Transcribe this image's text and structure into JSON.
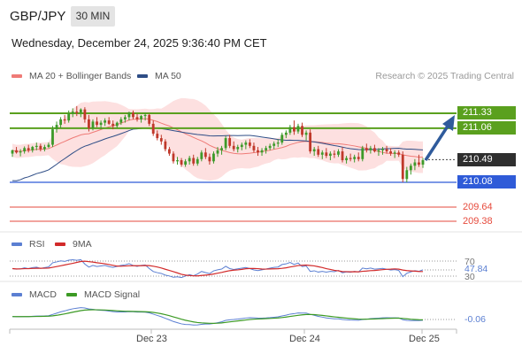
{
  "header": {
    "symbol": "GBP/JPY",
    "timeframe": "30 MIN",
    "datetime": "Wednesday, December 24, 2025 9:36:40 PM CET"
  },
  "legend": {
    "ma20": "MA 20 + Bollinger Bands",
    "ma50": "MA 50",
    "credit": "Research © 2025 Trading Central"
  },
  "colors": {
    "resistance": "#5aa01e",
    "support": "#2f5bd8",
    "target": "#e64a3c",
    "ma20": "#ef7b77",
    "ma50": "#2e4d86",
    "band": "#fde0e0",
    "up": "#3d9a2a",
    "down": "#c0392b",
    "rsi": "#5b7fd2",
    "rsi_ma": "#d22a2a",
    "macd": "#5b7fd2",
    "macd_signal": "#3c9a24"
  },
  "price_levels": [
    {
      "label": "211.33",
      "type": "resistance"
    },
    {
      "label": "211.06",
      "type": "resistance"
    },
    {
      "label": "210.49",
      "type": "current"
    },
    {
      "label": "210.08",
      "type": "support"
    },
    {
      "label": "209.64",
      "type": "target"
    },
    {
      "label": "209.38",
      "type": "target"
    }
  ],
  "rsi": {
    "name": "RSI",
    "ma_name": "9MA",
    "levels": [
      "70",
      "30"
    ],
    "current": "47.84"
  },
  "macd": {
    "name": "MACD",
    "signal_name": "MACD Signal",
    "current": "-0.06"
  },
  "x_axis": [
    "Dec 23",
    "Dec 24",
    "Dec 25"
  ],
  "chart_data": {
    "type": "candlestick",
    "title": "GBP/JPY",
    "timeframe": "30 MIN",
    "x_ticks": [
      "Dec 23",
      "Dec 24",
      "Dec 25"
    ],
    "ylim": [
      209.2,
      211.5
    ],
    "candles": [
      [
        210.6,
        210.67,
        210.54,
        210.66
      ],
      [
        210.66,
        210.72,
        210.6,
        210.62
      ],
      [
        210.62,
        210.68,
        210.55,
        210.64
      ],
      [
        210.64,
        210.73,
        210.6,
        210.7
      ],
      [
        210.7,
        210.76,
        210.62,
        210.66
      ],
      [
        210.66,
        210.74,
        210.62,
        210.72
      ],
      [
        210.72,
        210.8,
        210.66,
        210.74
      ],
      [
        210.74,
        210.78,
        210.64,
        210.68
      ],
      [
        210.68,
        210.76,
        210.64,
        210.72
      ],
      [
        210.72,
        210.8,
        210.7,
        210.76
      ],
      [
        210.76,
        211.1,
        210.72,
        211.04
      ],
      [
        211.04,
        211.18,
        210.98,
        211.12
      ],
      [
        211.12,
        211.26,
        211.06,
        211.22
      ],
      [
        211.22,
        211.3,
        211.14,
        211.2
      ],
      [
        211.2,
        211.38,
        211.16,
        211.32
      ],
      [
        211.32,
        211.42,
        211.26,
        211.36
      ],
      [
        211.36,
        211.46,
        211.28,
        211.34
      ],
      [
        211.34,
        211.42,
        211.26,
        211.4
      ],
      [
        211.4,
        211.44,
        211.16,
        211.22
      ],
      [
        211.22,
        211.3,
        211.0,
        211.06
      ],
      [
        211.06,
        211.22,
        211.02,
        211.18
      ],
      [
        211.18,
        211.26,
        211.08,
        211.12
      ],
      [
        211.12,
        211.2,
        211.04,
        211.16
      ],
      [
        211.16,
        211.24,
        211.1,
        211.2
      ],
      [
        211.2,
        211.26,
        211.12,
        211.14
      ],
      [
        211.14,
        211.2,
        211.04,
        211.1
      ],
      [
        211.1,
        211.18,
        211.06,
        211.16
      ],
      [
        211.16,
        211.26,
        211.12,
        211.22
      ],
      [
        211.22,
        211.3,
        211.16,
        211.26
      ],
      [
        211.26,
        211.36,
        211.2,
        211.34
      ],
      [
        211.34,
        211.38,
        211.22,
        211.26
      ],
      [
        211.26,
        211.32,
        211.18,
        211.22
      ],
      [
        211.22,
        211.3,
        211.16,
        211.28
      ],
      [
        211.28,
        211.34,
        211.2,
        211.3
      ],
      [
        211.3,
        211.32,
        211.1,
        211.14
      ],
      [
        211.14,
        211.2,
        210.92,
        210.96
      ],
      [
        210.96,
        211.02,
        210.84,
        210.88
      ],
      [
        210.88,
        210.94,
        210.76,
        210.82
      ],
      [
        210.82,
        210.86,
        210.64,
        210.68
      ],
      [
        210.68,
        210.72,
        210.56,
        210.6
      ],
      [
        210.6,
        210.64,
        210.42,
        210.46
      ],
      [
        210.46,
        210.54,
        210.4,
        210.48
      ],
      [
        210.48,
        210.52,
        210.36,
        210.4
      ],
      [
        210.4,
        210.5,
        210.36,
        210.46
      ],
      [
        210.46,
        210.56,
        210.4,
        210.52
      ],
      [
        210.52,
        210.58,
        210.38,
        210.42
      ],
      [
        210.42,
        210.54,
        210.38,
        210.5
      ],
      [
        210.5,
        210.66,
        210.46,
        210.62
      ],
      [
        210.62,
        210.7,
        210.5,
        210.54
      ],
      [
        210.54,
        210.6,
        210.4,
        210.46
      ],
      [
        210.46,
        210.64,
        210.42,
        210.6
      ],
      [
        210.6,
        210.72,
        210.54,
        210.66
      ],
      [
        210.66,
        210.74,
        210.58,
        210.7
      ],
      [
        210.7,
        210.92,
        210.66,
        210.88
      ],
      [
        210.88,
        210.94,
        210.7,
        210.74
      ],
      [
        210.74,
        210.82,
        210.64,
        210.68
      ],
      [
        210.68,
        210.76,
        210.62,
        210.72
      ],
      [
        210.72,
        210.8,
        210.66,
        210.76
      ],
      [
        210.76,
        210.84,
        210.68,
        210.8
      ],
      [
        210.8,
        210.86,
        210.7,
        210.74
      ],
      [
        210.74,
        210.8,
        210.62,
        210.66
      ],
      [
        210.66,
        210.72,
        210.56,
        210.62
      ],
      [
        210.62,
        210.7,
        210.56,
        210.66
      ],
      [
        210.66,
        210.74,
        210.6,
        210.7
      ],
      [
        210.7,
        210.78,
        210.66,
        210.74
      ],
      [
        210.74,
        210.82,
        210.68,
        210.78
      ],
      [
        210.78,
        210.86,
        210.72,
        210.8
      ],
      [
        210.8,
        210.98,
        210.76,
        210.94
      ],
      [
        210.94,
        211.02,
        210.88,
        210.98
      ],
      [
        210.98,
        211.12,
        210.94,
        211.08
      ],
      [
        211.08,
        211.2,
        210.94,
        211.0
      ],
      [
        211.0,
        211.14,
        210.96,
        211.1
      ],
      [
        211.1,
        211.16,
        210.9,
        210.94
      ],
      [
        210.94,
        211.02,
        210.84,
        210.98
      ],
      [
        210.98,
        211.04,
        210.6,
        210.64
      ],
      [
        210.64,
        210.72,
        210.56,
        210.68
      ],
      [
        210.68,
        210.74,
        210.54,
        210.58
      ],
      [
        210.58,
        210.66,
        210.5,
        210.62
      ],
      [
        210.62,
        210.7,
        210.52,
        210.56
      ],
      [
        210.56,
        210.64,
        210.48,
        210.6
      ],
      [
        210.6,
        210.66,
        210.52,
        210.58
      ],
      [
        210.58,
        210.68,
        210.54,
        210.64
      ],
      [
        210.64,
        210.72,
        210.44,
        210.48
      ],
      [
        210.48,
        210.56,
        210.42,
        210.52
      ],
      [
        210.52,
        210.6,
        210.46,
        210.5
      ],
      [
        210.5,
        210.58,
        210.44,
        210.54
      ],
      [
        210.54,
        210.62,
        210.46,
        210.5
      ],
      [
        210.5,
        210.74,
        210.46,
        210.7
      ],
      [
        210.7,
        210.78,
        210.62,
        210.66
      ],
      [
        210.66,
        210.74,
        210.6,
        210.7
      ],
      [
        210.7,
        210.76,
        210.62,
        210.64
      ],
      [
        210.64,
        210.7,
        210.56,
        210.66
      ],
      [
        210.66,
        210.72,
        210.58,
        210.68
      ],
      [
        210.68,
        210.74,
        210.6,
        210.64
      ],
      [
        210.64,
        210.7,
        210.56,
        210.6
      ],
      [
        210.6,
        210.66,
        210.52,
        210.62
      ],
      [
        210.62,
        210.66,
        210.54,
        210.58
      ],
      [
        210.58,
        210.64,
        210.08,
        210.14
      ],
      [
        210.14,
        210.36,
        210.08,
        210.3
      ],
      [
        210.3,
        210.42,
        210.22,
        210.38
      ],
      [
        210.38,
        210.5,
        210.3,
        210.44
      ],
      [
        210.44,
        210.58,
        210.36,
        210.4
      ],
      [
        210.4,
        210.52,
        210.34,
        210.48
      ]
    ]
  }
}
